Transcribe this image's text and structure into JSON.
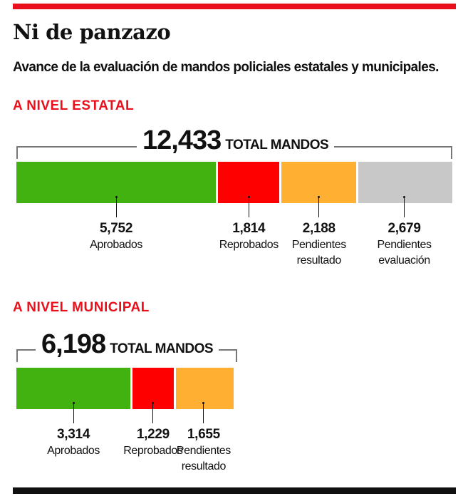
{
  "title": "Ni de panzazo",
  "subtitle": "Avance de la evaluación de mandos policiales estatales y municipales.",
  "chart_data": [
    {
      "type": "bar",
      "stacked": true,
      "orientation": "horizontal",
      "section": "A NIVEL ESTATAL",
      "total": "12,433",
      "total_label": "TOTAL MANDOS",
      "total_value": 12433,
      "categories": [
        [
          "Aprobados"
        ],
        [
          "Reprobados"
        ],
        [
          "Pendientes",
          "resultado"
        ],
        [
          "Pendientes",
          "evaluación"
        ]
      ],
      "values": [
        5752,
        1814,
        2188,
        2679
      ],
      "value_labels": [
        "5,752",
        "1,814",
        "2,188",
        "2,679"
      ],
      "colors": [
        "#41b210",
        "#ff0000",
        "#ffb033",
        "#c8c8c8"
      ]
    },
    {
      "type": "bar",
      "stacked": true,
      "orientation": "horizontal",
      "section": "A NIVEL MUNICIPAL",
      "total": "6,198",
      "total_label": "TOTAL MANDOS",
      "total_value": 6198,
      "categories": [
        [
          "Aprobados"
        ],
        [
          "Reprobados"
        ],
        [
          "Pendientes",
          "resultado"
        ]
      ],
      "values": [
        3314,
        1229,
        1655
      ],
      "value_labels": [
        "3,314",
        "1,229",
        "1,655"
      ],
      "colors": [
        "#41b210",
        "#ff0000",
        "#ffb033"
      ]
    }
  ]
}
